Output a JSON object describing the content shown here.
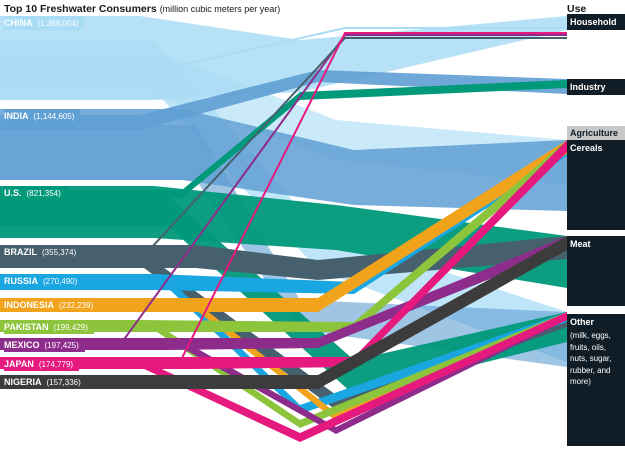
{
  "title": "Top 10 Freshwater Consumers",
  "subtitle": "(million cubic meters per year)",
  "use_header": "Use",
  "sources": [
    {
      "name": "CHINA",
      "value": "(1,368,004)",
      "color": "#a9dcf5"
    },
    {
      "name": "INDIA",
      "value": "(1,144,605)",
      "color": "#5f9fd4"
    },
    {
      "name": "U.S.",
      "value": "(821,354)",
      "color": "#00997a"
    },
    {
      "name": "BRAZIL",
      "value": "(355,374)",
      "color": "#46606e"
    },
    {
      "name": "RUSSIA",
      "value": "(270,490)",
      "color": "#1aa6e0"
    },
    {
      "name": "INDONESIA",
      "value": "(232,239)",
      "color": "#f2a31c"
    },
    {
      "name": "PAKISTAN",
      "value": "(199,429)",
      "color": "#8cc43c"
    },
    {
      "name": "MEXICO",
      "value": "(197,425)",
      "color": "#8e2c8c"
    },
    {
      "name": "JAPAN",
      "value": "(174,779)",
      "color": "#e6197f"
    },
    {
      "name": "NIGERIA",
      "value": "(157,336)",
      "color": "#3c3c3c"
    }
  ],
  "uses": {
    "household": "Household",
    "industry": "Industry",
    "agriculture": "Agriculture",
    "cereals": "Cereals",
    "meat": "Meat",
    "other": "Other",
    "other_desc": "(milk, eggs, fruits, oils, nuts, sugar, rubber, and more)"
  },
  "colors": {
    "dest_bar": "#101c26",
    "agri_tab": "#c8c8c8"
  }
}
